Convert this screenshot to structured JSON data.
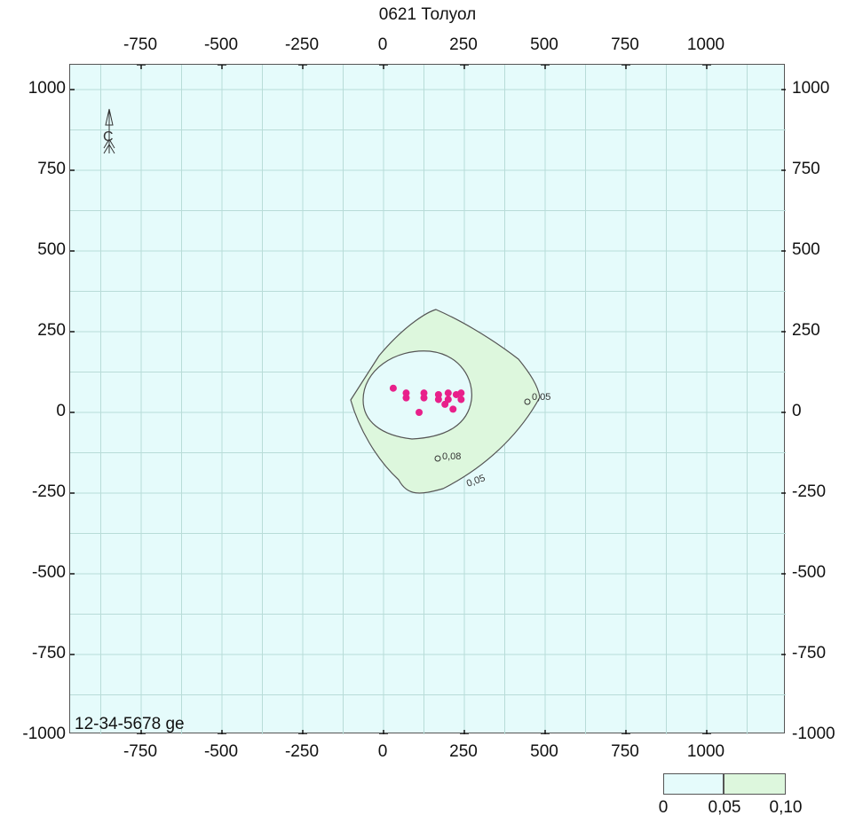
{
  "title": "0621 Толуол",
  "map_code": "12-34-5678 ge",
  "x_ticks": [
    "-750",
    "-500",
    "-250",
    "0",
    "250",
    "500",
    "750",
    "1000"
  ],
  "y_ticks": [
    "1000",
    "750",
    "500",
    "250",
    "0",
    "-250",
    "-500",
    "-750",
    "-1000"
  ],
  "x_tick_values": [
    -750,
    -500,
    -250,
    0,
    250,
    500,
    750,
    1000
  ],
  "y_tick_values": [
    1000,
    750,
    500,
    250,
    0,
    -250,
    -500,
    -750,
    -1000
  ],
  "compass_label": "С",
  "isolines": [
    {
      "label": "0,08",
      "value": 0.08
    },
    {
      "label": "0,05",
      "value": 0.05
    },
    {
      "label": "0,05",
      "value": 0.05
    }
  ],
  "legend": {
    "labels": [
      "0",
      "0,05",
      "0,10"
    ],
    "colors": [
      "#e5fbfb",
      "#ddf7dd"
    ]
  },
  "sources": [
    [
      30,
      75
    ],
    [
      70,
      60
    ],
    [
      70,
      45
    ],
    [
      125,
      60
    ],
    [
      125,
      45
    ],
    [
      170,
      55
    ],
    [
      170,
      40
    ],
    [
      200,
      60
    ],
    [
      200,
      40
    ],
    [
      225,
      55
    ],
    [
      240,
      60
    ],
    [
      240,
      40
    ],
    [
      215,
      10
    ],
    [
      190,
      25
    ],
    [
      110,
      0
    ]
  ],
  "colors": {
    "background": "#e5fbfb",
    "zone": "#ddf7dd",
    "grid": "#b8dcd8",
    "source": "#e8208a"
  }
}
